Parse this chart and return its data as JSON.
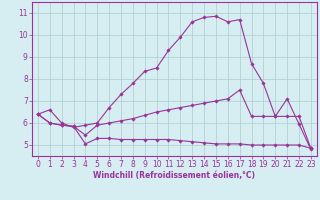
{
  "title": "",
  "xlabel": "Windchill (Refroidissement éolien,°C)",
  "ylabel": "",
  "background_color": "#d6eef2",
  "grid_color": "#aacccc",
  "line_color": "#993399",
  "xlim": [
    -0.5,
    23.5
  ],
  "ylim": [
    4.5,
    11.5
  ],
  "xticks": [
    0,
    1,
    2,
    3,
    4,
    5,
    6,
    7,
    8,
    9,
    10,
    11,
    12,
    13,
    14,
    15,
    16,
    17,
    18,
    19,
    20,
    21,
    22,
    23
  ],
  "yticks": [
    5,
    6,
    7,
    8,
    9,
    10,
    11
  ],
  "line1_x": [
    0,
    1,
    2,
    3,
    4,
    5,
    6,
    7,
    8,
    9,
    10,
    11,
    12,
    13,
    14,
    15,
    16,
    17,
    18,
    19,
    20,
    21,
    22,
    23
  ],
  "line1_y": [
    6.4,
    6.6,
    6.0,
    5.8,
    5.9,
    6.0,
    6.7,
    7.3,
    7.8,
    8.35,
    8.5,
    9.3,
    9.9,
    10.6,
    10.8,
    10.85,
    10.6,
    10.7,
    8.7,
    7.8,
    6.3,
    7.1,
    5.95,
    4.8
  ],
  "line2_x": [
    0,
    1,
    2,
    3,
    4,
    5,
    6,
    7,
    8,
    9,
    10,
    11,
    12,
    13,
    14,
    15,
    16,
    17,
    18,
    19,
    20,
    21,
    22,
    23
  ],
  "line2_y": [
    6.4,
    6.0,
    5.9,
    5.85,
    5.05,
    5.3,
    5.3,
    5.25,
    5.25,
    5.25,
    5.25,
    5.25,
    5.2,
    5.15,
    5.1,
    5.05,
    5.05,
    5.05,
    5.0,
    5.0,
    5.0,
    5.0,
    5.0,
    4.85
  ],
  "line3_x": [
    0,
    1,
    2,
    3,
    4,
    5,
    6,
    7,
    8,
    9,
    10,
    11,
    12,
    13,
    14,
    15,
    16,
    17,
    18,
    19,
    20,
    21,
    22,
    23
  ],
  "line3_y": [
    6.4,
    6.0,
    5.9,
    5.85,
    5.45,
    5.9,
    6.0,
    6.1,
    6.2,
    6.35,
    6.5,
    6.6,
    6.7,
    6.8,
    6.9,
    7.0,
    7.1,
    7.5,
    6.3,
    6.3,
    6.3,
    6.3,
    6.3,
    4.85
  ],
  "tick_fontsize": 5.5,
  "xlabel_fontsize": 5.5
}
